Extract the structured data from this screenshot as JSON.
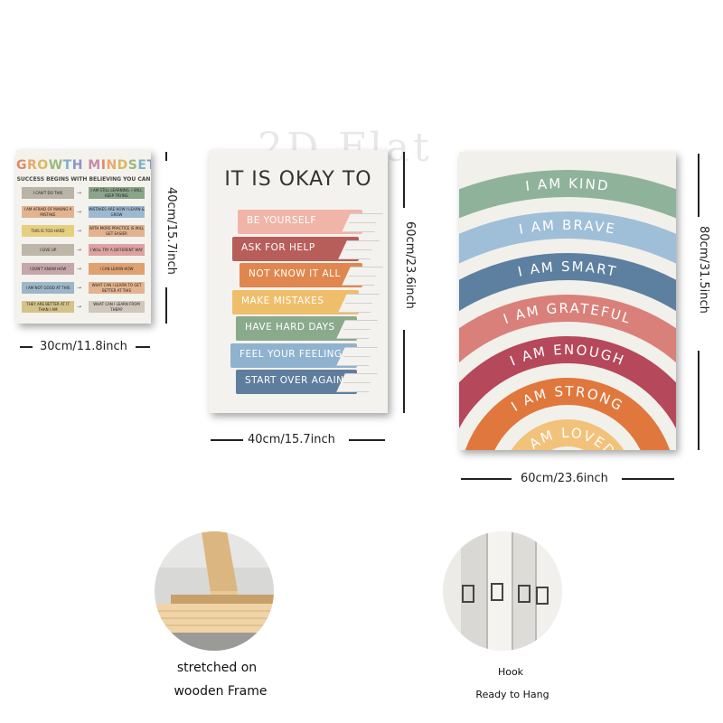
{
  "watermark": "2D Flat",
  "growth_poster": {
    "title_letters": [
      "G",
      "R",
      "O",
      "W",
      "T",
      "H",
      " ",
      "M",
      "I",
      "N",
      "D",
      "S",
      "E",
      "T"
    ],
    "title_colors": [
      "#e08a6a",
      "#e8a96d",
      "#d9b964",
      "#9bb97d",
      "#7fb0c9",
      "#8d93c9",
      "#ffffff",
      "#c98aa8",
      "#e08a6a",
      "#e8a96d",
      "#d9b964",
      "#9bb97d",
      "#7fb0c9",
      "#8d93c9"
    ],
    "subtitle": "SUCCESS BEGINS WITH BELIEVING YOU CAN",
    "rows": [
      {
        "left": "I CAN'T DO THIS",
        "right": "I AM STILL LEARNING. I WILL KEEP TRYING",
        "left_color": "#b9b3a8",
        "right_color": "#8ba58a"
      },
      {
        "left": "I AM AFRAID OF MAKING A MISTAKE",
        "right": "MISTAKES ARE HOW I LEARN & GROW",
        "left_color": "#e3b38f",
        "right_color": "#9cb9d1"
      },
      {
        "left": "THIS IS TOO HARD",
        "right": "WITH MORE PRACTICE IS WILL GET EASIER",
        "left_color": "#e6cf7e",
        "right_color": "#e3b38f"
      },
      {
        "left": "I GIVE UP",
        "right": "I WILL TRY A DIFFERENT WAY",
        "left_color": "#bfb6aa",
        "right_color": "#dca2a2"
      },
      {
        "left": "I DON'T KNOW HOW",
        "right": "I CAN LEARN HOW",
        "left_color": "#c5a7a9",
        "right_color": "#e0a171"
      },
      {
        "left": "I AM NOT GOOD AT THIS",
        "right": "WHAT CAN I LEARN TO GET BETTER AT THIS",
        "left_color": "#9cb7c8",
        "right_color": "#e3b38f"
      },
      {
        "left": "THEY ARE BETTER AT IT THAN I AM",
        "right": "WHAT CAN I LEARN FROM THEM?",
        "left_color": "#d4c48a",
        "right_color": "#d0c7bd"
      }
    ],
    "width_label": "30cm/11.8inch",
    "height_label": "40cm/15.7inch"
  },
  "okay_poster": {
    "title": "IT IS OKAY TO",
    "books": [
      {
        "label": "BE YOURSELF",
        "color": "#f0b5a8"
      },
      {
        "label": "ASK FOR HELP",
        "color": "#b85e5a"
      },
      {
        "label": "NOT KNOW IT ALL",
        "color": "#e0874f"
      },
      {
        "label": "MAKE MISTAKES",
        "color": "#efbe6b"
      },
      {
        "label": "HAVE HARD DAYS",
        "color": "#8aaa8c"
      },
      {
        "label": "FEEL YOUR FEELINGS",
        "color": "#8fb2cf"
      },
      {
        "label": "START OVER AGAIN",
        "color": "#5f7e9e"
      }
    ],
    "width_label": "40cm/15.7inch",
    "height_label": "60cm/23.6inch"
  },
  "rainbow_poster": {
    "arcs": [
      {
        "label": "I AM KIND",
        "color": "#8fb39a"
      },
      {
        "label": "I AM BRAVE",
        "color": "#9fbfd8"
      },
      {
        "label": "I AM SMART",
        "color": "#5d7fa0"
      },
      {
        "label": "I AM GRATEFUL",
        "color": "#d9807a"
      },
      {
        "label": "I AM ENOUGH",
        "color": "#b5485a"
      },
      {
        "label": "I AM STRONG",
        "color": "#e0773d"
      },
      {
        "label": "I AM LOVED",
        "color": "#f2c27b"
      }
    ],
    "width_label": "60cm/23.6inch",
    "height_label": "80cm/31.5inch"
  },
  "features": {
    "frame_caption_line1": "stretched on",
    "frame_caption_line2": "wooden Frame",
    "hook_caption_line1": "Hook",
    "hook_caption_line2": "Ready to Hang"
  }
}
